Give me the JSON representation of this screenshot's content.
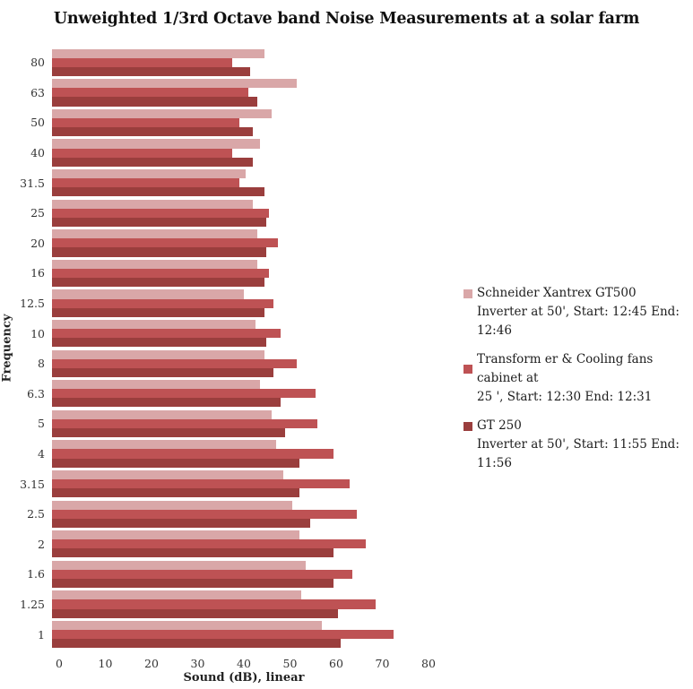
{
  "title": "Unweighted 1/3rd Octave band Noise Measurements at a solar farm",
  "chart_data": {
    "type": "bar",
    "orientation": "horizontal",
    "title": "Unweighted 1/3rd Octave band Noise Measurements at a solar farm",
    "xlabel": "Sound (dB), linear",
    "ylabel": "Frequency",
    "xlim": [
      0,
      80
    ],
    "xticks": [
      0,
      10,
      20,
      30,
      40,
      50,
      60,
      70,
      80
    ],
    "grid": false,
    "legend_position": "right",
    "categories": [
      "80",
      "63",
      "50",
      "40",
      "31.5",
      "25",
      "20",
      "16",
      "12.5",
      "10",
      "8",
      "6.3",
      "5",
      "4",
      "3.15",
      "2.5",
      "2",
      "1.6",
      "1.25",
      "1"
    ],
    "series": [
      {
        "name": "Schneider Xantrex GT500 Inverter at 50', Start: 12:45 End: 12:46",
        "legend_lines": [
          "Schneider Xantrex GT500",
          "Inverter at 50', Start: 12:45 End: 12:46"
        ],
        "color": "#D9A7A8",
        "values": [
          46,
          53,
          47.5,
          45,
          42,
          43.5,
          44.5,
          44.5,
          41.5,
          44,
          46,
          45,
          47.5,
          48.5,
          50,
          52,
          53.5,
          55,
          54,
          58.5
        ]
      },
      {
        "name": "Transform er & Cooling fans cabinet at 25 ', Start: 12:30 End: 12:31",
        "legend_lines": [
          "Transform er & Cooling fans cabinet at",
          "25 ', Start: 12:30 End: 12:31"
        ],
        "color": "#BE5254",
        "values": [
          39,
          42.5,
          40.5,
          39,
          40.5,
          47,
          49,
          47,
          48,
          49.5,
          53,
          57,
          57.5,
          61,
          64.5,
          66,
          68,
          65,
          70,
          74
        ]
      },
      {
        "name": "GT 250 Inverter at 50', Start: 11:55 End: 11:56",
        "legend_lines": [
          "GT 250",
          "Inverter at 50', Start: 11:55 End: 11:56"
        ],
        "color": "#9A3E3D",
        "values": [
          43,
          44.5,
          43.5,
          43.5,
          46,
          46.5,
          46.5,
          46,
          46,
          46.5,
          48,
          49.5,
          50.5,
          53.5,
          53.5,
          56,
          61,
          61,
          62,
          62.5
        ]
      }
    ]
  }
}
